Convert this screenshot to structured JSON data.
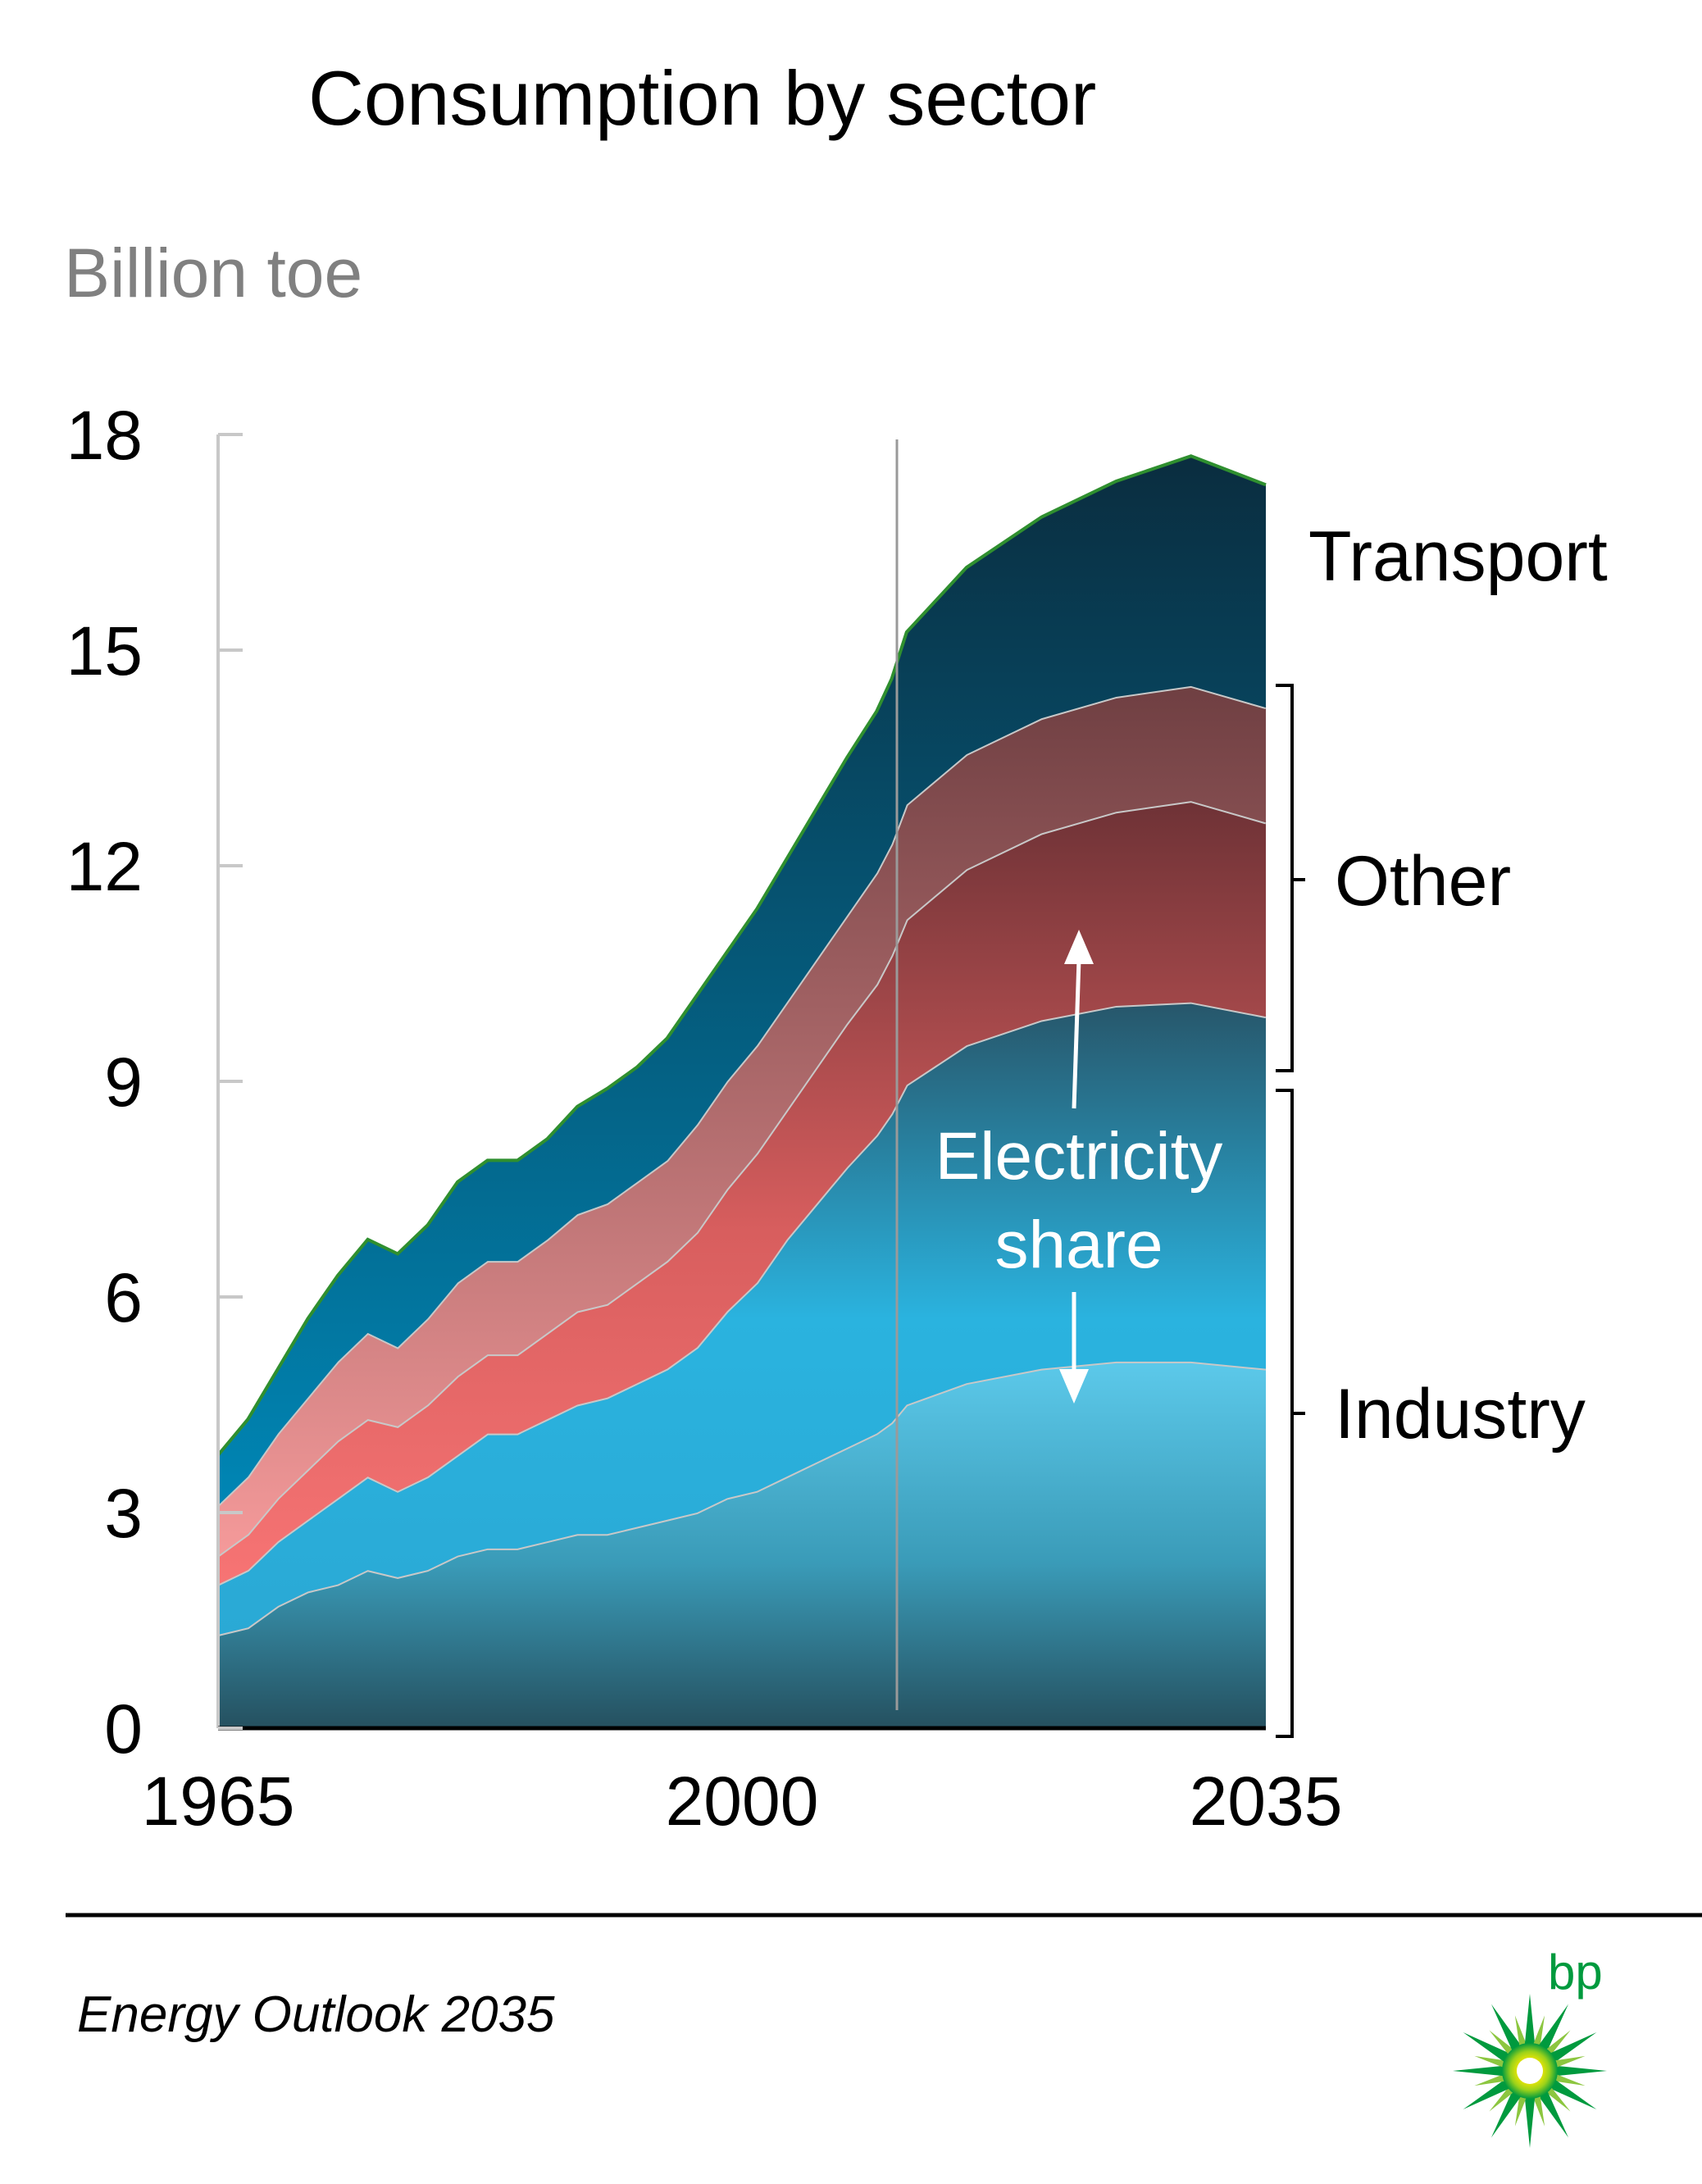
{
  "chart_data": {
    "type": "area",
    "title": "Consumption by sector",
    "ylabel": "Billion toe",
    "xlabel": "",
    "ylim": [
      0,
      18
    ],
    "xlim": [
      1965,
      2035
    ],
    "yticks": [
      "0",
      "3",
      "6",
      "9",
      "12",
      "15",
      "18"
    ],
    "xticks": [
      "1965",
      "2000",
      "2035"
    ],
    "projection_start_year": 2011,
    "stacked": true,
    "x": [
      1965,
      1967,
      1969,
      1971,
      1973,
      1975,
      1977,
      1979,
      1981,
      1983,
      1985,
      1987,
      1989,
      1991,
      1993,
      1995,
      1997,
      1999,
      2001,
      2003,
      2005,
      2007,
      2009,
      2010,
      2011,
      2015,
      2020,
      2025,
      2030,
      2035
    ],
    "series": [
      {
        "name": "Industry",
        "fill": "industry-base",
        "values": [
          1.3,
          1.4,
          1.7,
          1.9,
          2.0,
          2.2,
          2.1,
          2.2,
          2.4,
          2.5,
          2.5,
          2.6,
          2.7,
          2.7,
          2.8,
          2.9,
          3.0,
          3.2,
          3.3,
          3.5,
          3.7,
          3.9,
          4.1,
          4.25,
          4.5,
          4.8,
          5.0,
          5.1,
          5.1,
          5.0
        ],
        "cumulative": [
          1.3,
          1.4,
          1.7,
          1.9,
          2.0,
          2.2,
          2.1,
          2.2,
          2.4,
          2.5,
          2.5,
          2.6,
          2.7,
          2.7,
          2.8,
          2.9,
          3.0,
          3.2,
          3.3,
          3.5,
          3.7,
          3.9,
          4.1,
          4.25,
          4.5,
          4.8,
          5.0,
          5.1,
          5.1,
          5.0
        ]
      },
      {
        "name": "Industry",
        "fill": "industry-elec",
        "values": [
          0.7,
          0.8,
          0.9,
          1.0,
          1.2,
          1.3,
          1.2,
          1.3,
          1.4,
          1.6,
          1.6,
          1.7,
          1.8,
          1.9,
          2.0,
          2.1,
          2.3,
          2.6,
          2.9,
          3.3,
          3.6,
          3.9,
          4.15,
          4.3,
          4.45,
          4.7,
          4.85,
          4.95,
          5.0,
          4.9
        ],
        "cumulative": [
          2.0,
          2.2,
          2.6,
          2.9,
          3.2,
          3.5,
          3.3,
          3.5,
          3.8,
          4.1,
          4.1,
          4.3,
          4.5,
          4.6,
          4.8,
          5.0,
          5.3,
          5.8,
          6.2,
          6.8,
          7.3,
          7.8,
          8.25,
          8.55,
          8.95,
          9.5,
          9.85,
          10.05,
          10.1,
          9.9
        ]
      },
      {
        "name": "Other",
        "fill": "other-base",
        "values": [
          0.4,
          0.5,
          0.6,
          0.7,
          0.8,
          0.8,
          0.9,
          1.0,
          1.1,
          1.1,
          1.1,
          1.2,
          1.3,
          1.3,
          1.4,
          1.5,
          1.6,
          1.7,
          1.8,
          1.8,
          1.9,
          2.0,
          2.1,
          2.2,
          2.3,
          2.45,
          2.6,
          2.7,
          2.8,
          2.7
        ],
        "cumulative": [
          2.4,
          2.7,
          3.2,
          3.6,
          4.0,
          4.3,
          4.2,
          4.5,
          4.9,
          5.2,
          5.2,
          5.5,
          5.8,
          5.9,
          6.2,
          6.5,
          6.9,
          7.5,
          8.0,
          8.6,
          9.2,
          9.8,
          10.35,
          10.75,
          11.25,
          11.95,
          12.45,
          12.75,
          12.9,
          12.6
        ]
      },
      {
        "name": "Other",
        "fill": "other-elec",
        "values": [
          0.7,
          0.8,
          0.9,
          1.0,
          1.1,
          1.2,
          1.1,
          1.2,
          1.3,
          1.3,
          1.3,
          1.3,
          1.35,
          1.4,
          1.4,
          1.4,
          1.5,
          1.5,
          1.5,
          1.5,
          1.5,
          1.5,
          1.55,
          1.55,
          1.6,
          1.6,
          1.6,
          1.6,
          1.6,
          1.6
        ],
        "cumulative": [
          3.1,
          3.5,
          4.1,
          4.6,
          5.1,
          5.5,
          5.3,
          5.7,
          6.2,
          6.5,
          6.5,
          6.8,
          7.15,
          7.3,
          7.6,
          7.9,
          8.4,
          9.0,
          9.5,
          10.1,
          10.7,
          11.3,
          11.9,
          12.3,
          12.85,
          13.55,
          14.05,
          14.35,
          14.5,
          14.2
        ]
      },
      {
        "name": "Transport",
        "fill": "transport",
        "values": [
          0.7,
          0.8,
          0.9,
          1.1,
          1.2,
          1.3,
          1.3,
          1.3,
          1.4,
          1.4,
          1.4,
          1.4,
          1.5,
          1.6,
          1.6,
          1.7,
          1.8,
          1.8,
          1.9,
          2.0,
          2.1,
          2.2,
          2.25,
          2.3,
          2.4,
          2.6,
          2.8,
          3.0,
          3.2,
          3.1
        ],
        "cumulative": [
          3.8,
          4.3,
          5.0,
          5.7,
          6.3,
          6.8,
          6.6,
          7.0,
          7.6,
          7.9,
          7.9,
          8.2,
          8.65,
          8.9,
          9.2,
          9.6,
          10.2,
          10.8,
          11.4,
          12.1,
          12.8,
          13.5,
          14.15,
          14.6,
          15.25,
          16.15,
          16.85,
          17.35,
          17.7,
          17.3
        ]
      }
    ],
    "labels": {
      "transport": "Transport",
      "other": "Other",
      "industry": "Industry",
      "electricity_line1": "Electricity",
      "electricity_line2": "share"
    }
  },
  "footer": {
    "publication": "Energy Outlook 2035",
    "brand": "bp"
  }
}
